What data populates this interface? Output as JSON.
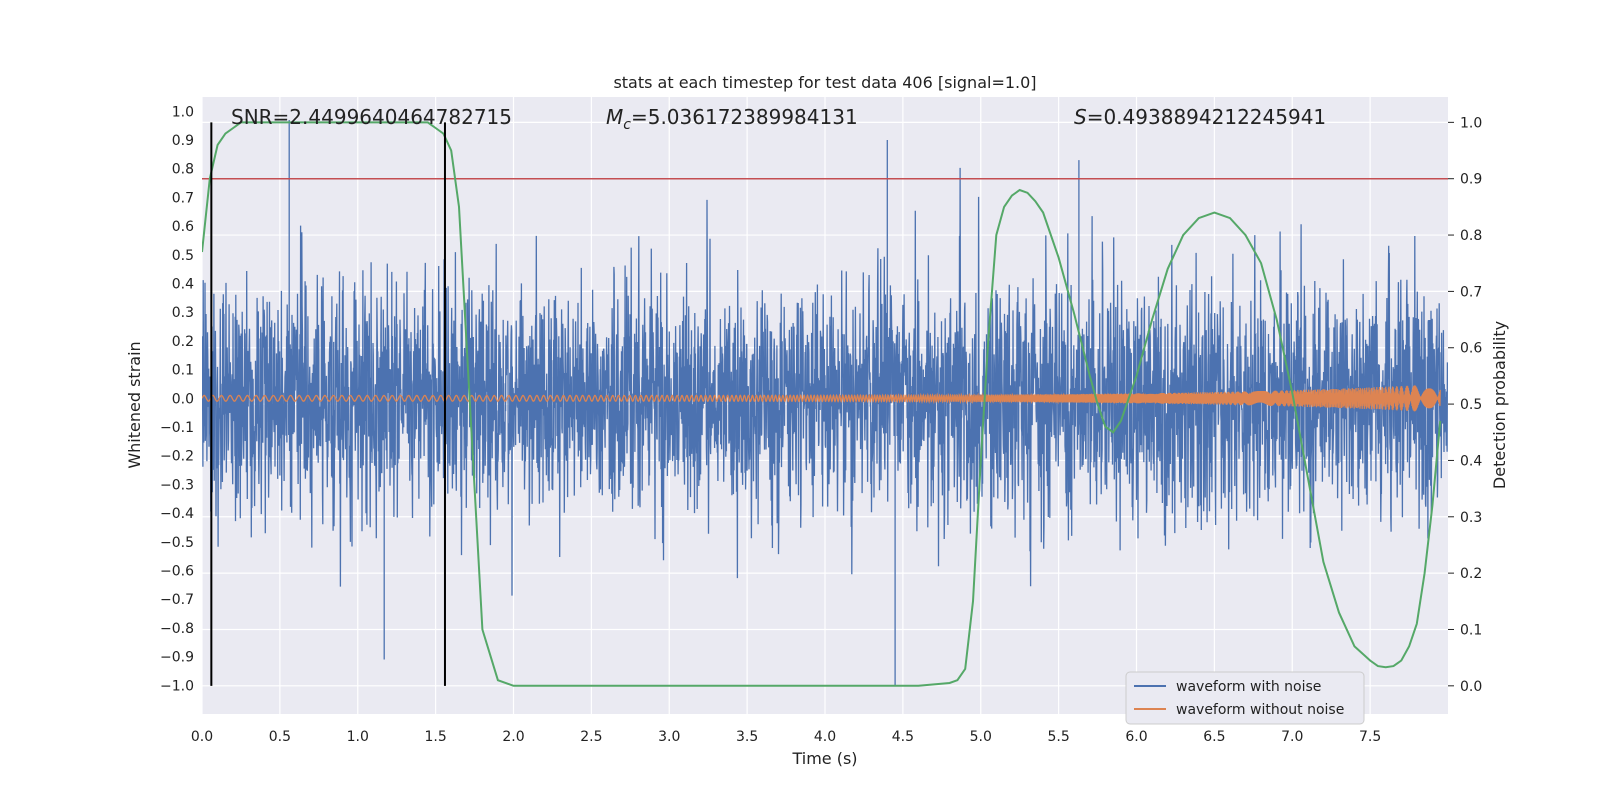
{
  "chart_data": {
    "type": "line",
    "title": "stats at each timestep for test data 406 [signal=1.0]",
    "xlabel": "Time (s)",
    "ylabel": "Whitened strain",
    "ylabel_right": "Detection probability",
    "xlim": [
      0.0,
      8.0
    ],
    "ylim": [
      -1.1,
      1.05
    ],
    "ylim_right": [
      -0.05,
      1.045
    ],
    "x_ticks": [
      "0.0",
      "0.5",
      "1.0",
      "1.5",
      "2.0",
      "2.5",
      "3.0",
      "3.5",
      "4.0",
      "4.5",
      "5.0",
      "5.5",
      "6.0",
      "6.5",
      "7.0",
      "7.5"
    ],
    "y_ticks": [
      "1.0",
      "0.9",
      "0.8",
      "0.7",
      "0.6",
      "0.5",
      "0.4",
      "0.3",
      "0.2",
      "0.1",
      "0.0",
      "−0.1",
      "−0.2",
      "−0.3",
      "−0.4",
      "−0.5",
      "−0.6",
      "−0.7",
      "−0.8",
      "−0.9",
      "−1.0"
    ],
    "y_ticks_right": [
      "1.0",
      "0.9",
      "0.8",
      "0.7",
      "0.6",
      "0.5",
      "0.4",
      "0.3",
      "0.2",
      "0.1",
      "0.0"
    ],
    "annotations": {
      "snr": "SNR=2.4499640464782715",
      "mc_symbol": "M",
      "mc_sub": "c",
      "mc_value": "=5.036172389984131",
      "s_symbol": "S",
      "s_value": "=0.4938894212245941"
    },
    "threshold_right": 0.9,
    "vertical_markers_x": [
      0.06,
      1.56
    ],
    "series": [
      {
        "name": "waveform with noise",
        "color": "#4c72b0",
        "sample_rate": 512,
        "noise_sigma": 0.2,
        "notable_peaks": [
          [
            0.56,
            0.97
          ],
          [
            4.4,
            0.9
          ],
          [
            4.45,
            -1.0
          ],
          [
            5.63,
            0.83
          ],
          [
            1.17,
            -0.91
          ]
        ]
      },
      {
        "name": "waveform without noise",
        "color": "#dd8452",
        "amplitude_start": 0.01,
        "amplitude_end": 0.05
      }
    ],
    "detection_probability": {
      "color": "#55a868",
      "x": [
        0.0,
        0.05,
        0.1,
        0.15,
        0.2,
        0.25,
        0.3,
        0.4,
        0.5,
        0.6,
        0.8,
        1.0,
        1.2,
        1.4,
        1.45,
        1.5,
        1.55,
        1.6,
        1.65,
        1.7,
        1.8,
        1.9,
        2.0,
        3.0,
        4.0,
        4.6,
        4.8,
        4.85,
        4.9,
        4.95,
        5.0,
        5.05,
        5.1,
        5.15,
        5.2,
        5.25,
        5.3,
        5.35,
        5.4,
        5.5,
        5.6,
        5.7,
        5.75,
        5.8,
        5.85,
        5.9,
        6.0,
        6.1,
        6.2,
        6.3,
        6.4,
        6.5,
        6.6,
        6.7,
        6.8,
        6.9,
        7.0,
        7.1,
        7.2,
        7.3,
        7.4,
        7.5,
        7.55,
        7.6,
        7.65,
        7.7,
        7.75,
        7.8,
        7.85,
        7.9,
        7.95
      ],
      "y": [
        0.77,
        0.9,
        0.96,
        0.98,
        0.99,
        1.0,
        1.0,
        1.0,
        1.0,
        1.0,
        1.0,
        1.0,
        1.0,
        1.0,
        1.0,
        0.99,
        0.98,
        0.95,
        0.85,
        0.6,
        0.1,
        0.01,
        0.0,
        0.0,
        0.0,
        0.0,
        0.005,
        0.01,
        0.03,
        0.15,
        0.4,
        0.62,
        0.8,
        0.85,
        0.87,
        0.88,
        0.875,
        0.86,
        0.84,
        0.76,
        0.66,
        0.55,
        0.5,
        0.46,
        0.45,
        0.47,
        0.55,
        0.65,
        0.74,
        0.8,
        0.83,
        0.84,
        0.83,
        0.8,
        0.75,
        0.65,
        0.52,
        0.37,
        0.22,
        0.13,
        0.07,
        0.045,
        0.035,
        0.033,
        0.035,
        0.045,
        0.07,
        0.11,
        0.2,
        0.32,
        0.47
      ]
    },
    "legend": {
      "position": "lower-right",
      "entries": [
        "waveform with noise",
        "waveform without noise"
      ]
    },
    "grid": true,
    "colors": {
      "axes_bg": "#eaeaf2",
      "grid": "#ffffff",
      "threshold": "#c44e52",
      "marker": "#000000"
    }
  }
}
